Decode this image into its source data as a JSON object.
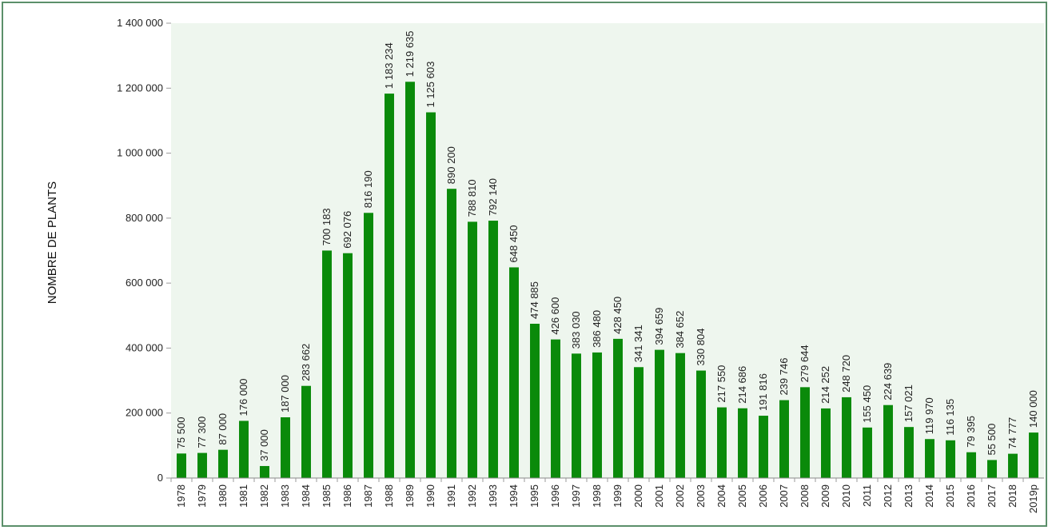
{
  "chart_data": {
    "type": "bar",
    "ylabel": "NOMBRE DE PLANTS",
    "ylim": [
      0,
      1400000
    ],
    "y_ticks": [
      0,
      200000,
      400000,
      600000,
      800000,
      1000000,
      1200000,
      1400000
    ],
    "y_tick_labels": [
      "0",
      "200 000",
      "400 000",
      "600 000",
      "800 000",
      "1 000 000",
      "1 200 000",
      "1 400 000"
    ],
    "grid": false,
    "bar_color": "#0a8a0a",
    "plot_bg": "#eef6ee",
    "categories": [
      "1978",
      "1979",
      "1980",
      "1981",
      "1982",
      "1983",
      "1984",
      "1985",
      "1986",
      "1987",
      "1988",
      "1989",
      "1990",
      "1991",
      "1992",
      "1993",
      "1994",
      "1995",
      "1996",
      "1997",
      "1998",
      "1999",
      "2000",
      "2001",
      "2002",
      "2003",
      "2004",
      "2005",
      "2006",
      "2007",
      "2008",
      "2009",
      "2010",
      "2011",
      "2012",
      "2013",
      "2014",
      "2015",
      "2016",
      "2017",
      "2018",
      "2019p"
    ],
    "values": [
      75500,
      77300,
      87000,
      176000,
      37000,
      187000,
      283662,
      700183,
      692076,
      816190,
      1183234,
      1219635,
      1125603,
      890200,
      788810,
      792140,
      648450,
      474885,
      426600,
      383030,
      386480,
      428450,
      341341,
      394659,
      384652,
      330804,
      217550,
      214686,
      191816,
      239746,
      279644,
      214252,
      248720,
      155450,
      224639,
      157021,
      119970,
      116135,
      79395,
      55500,
      74777,
      140000
    ],
    "value_labels": [
      "75 500",
      "77 300",
      "87 000",
      "176 000",
      "37 000",
      "187 000",
      "283 662",
      "700 183",
      "692 076",
      "816 190",
      "1 183 234",
      "1 219 635",
      "1 125 603",
      "890 200",
      "788 810",
      "792 140",
      "648 450",
      "474 885",
      "426 600",
      "383 030",
      "386 480",
      "428 450",
      "341 341",
      "394 659",
      "384 652",
      "330 804",
      "217 550",
      "214 686",
      "191 816",
      "239 746",
      "279 644",
      "214 252",
      "248 720",
      "155 450",
      "224 639",
      "157 021",
      "119 970",
      "116 135",
      "79 395",
      "55 500",
      "74 777",
      "140 000"
    ]
  }
}
